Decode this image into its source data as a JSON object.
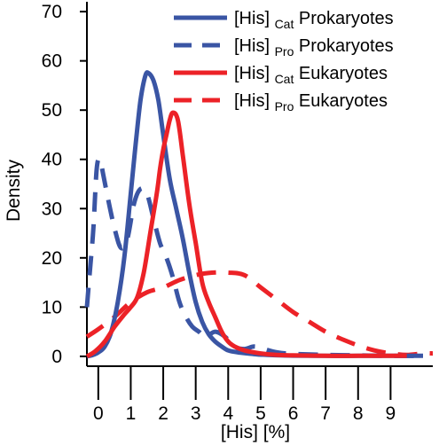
{
  "chart_data": {
    "type": "line",
    "title": "",
    "xlabel": "[His] [%]",
    "ylabel": "Density",
    "xlim": [
      -0.35,
      10.3
    ],
    "ylim": [
      -2,
      72
    ],
    "xticks": [
      0,
      1,
      2,
      3,
      4,
      5,
      6,
      7,
      8,
      9
    ],
    "yticks": [
      0,
      10,
      20,
      30,
      40,
      50,
      60,
      70
    ],
    "grid": false,
    "legend_position": "top-right",
    "series": [
      {
        "label_main": "[His]",
        "label_sub": "Cat",
        "label_tail": "Prokaryotes",
        "color": "#3a55a4",
        "dash": "solid",
        "x": [
          -0.35,
          -0.2,
          0,
          0.2,
          0.4,
          0.6,
          0.8,
          1.0,
          1.15,
          1.3,
          1.45,
          1.55,
          1.7,
          1.85,
          2.0,
          2.2,
          2.4,
          2.6,
          2.8,
          3.0,
          3.2,
          3.4,
          3.6,
          3.8,
          4.0,
          4.3,
          4.6,
          4.9,
          5.2,
          5.6,
          6.0,
          7.0,
          8.0,
          9.0,
          10.0
        ],
        "y": [
          0,
          0.2,
          0.8,
          2,
          5,
          11,
          20,
          33,
          43,
          52,
          57,
          57.5,
          56,
          52,
          45,
          36,
          30,
          24,
          17,
          11,
          7,
          4.5,
          3,
          2,
          1.2,
          0.8,
          0.6,
          0.4,
          0.3,
          0.2,
          0.15,
          0.1,
          0.1,
          0.1,
          0.1
        ]
      },
      {
        "label_main": "[His]",
        "label_sub": "Pro",
        "label_tail": "Prokaryotes",
        "color": "#3a55a4",
        "dash": "dashed",
        "x": [
          -0.35,
          -0.25,
          -0.15,
          -0.05,
          0.05,
          0.15,
          0.3,
          0.5,
          0.7,
          0.9,
          1.1,
          1.3,
          1.5,
          1.7,
          1.9,
          2.1,
          2.3,
          2.5,
          2.7,
          2.9,
          3.1,
          3.3,
          3.6,
          3.9,
          4.2,
          4.5,
          4.8,
          5.1,
          5.5,
          6.0,
          7.0,
          8.0,
          9.0,
          10.0
        ],
        "y": [
          10,
          18,
          26,
          38,
          40,
          37,
          32,
          26,
          22,
          24,
          31,
          34,
          33,
          28,
          23,
          20,
          16,
          11,
          8,
          6,
          5,
          4,
          5,
          4,
          2,
          1.5,
          2,
          1.5,
          0.8,
          0.5,
          0.3,
          0.2,
          0.1,
          0.1
        ]
      },
      {
        "label_main": "[His]",
        "label_sub": "Cat",
        "label_tail": "Eukaryotes",
        "color": "#ec2227",
        "dash": "solid",
        "x": [
          -0.35,
          -0.1,
          0.2,
          0.5,
          0.8,
          1.0,
          1.2,
          1.4,
          1.6,
          1.8,
          1.9,
          2.0,
          2.1,
          2.2,
          2.3,
          2.45,
          2.6,
          2.8,
          3.0,
          3.2,
          3.4,
          3.6,
          3.8,
          4.0,
          4.2,
          4.5,
          5.0,
          5.5,
          6.0,
          7.0,
          8.0,
          9.0,
          9.5
        ],
        "y": [
          0,
          1,
          3,
          6,
          8.5,
          10,
          12,
          17,
          25,
          33,
          38,
          42,
          45,
          48,
          49.5,
          48,
          41,
          31,
          23,
          15,
          11,
          8,
          5,
          3,
          2,
          1.2,
          0.6,
          0.3,
          0.2,
          0.1,
          0.1,
          0.1,
          0.1
        ]
      },
      {
        "label_main": "[His]",
        "label_sub": "Pro",
        "label_tail": "Eukaryotes",
        "color": "#ec2227",
        "dash": "dashed",
        "x": [
          -0.35,
          0,
          0.5,
          1.0,
          1.5,
          2.0,
          2.5,
          3.0,
          3.5,
          4.0,
          4.5,
          5.0,
          5.5,
          6.0,
          6.5,
          7.0,
          7.5,
          8.0,
          8.5,
          9.0,
          9.5,
          10.0,
          10.3
        ],
        "y": [
          4,
          5.5,
          8,
          11,
          13,
          14,
          15.5,
          16.5,
          17,
          17,
          16.5,
          14,
          11.5,
          9,
          7,
          5,
          3.5,
          2.2,
          1.2,
          0.6,
          0.3,
          0.6,
          0.6
        ]
      }
    ]
  }
}
